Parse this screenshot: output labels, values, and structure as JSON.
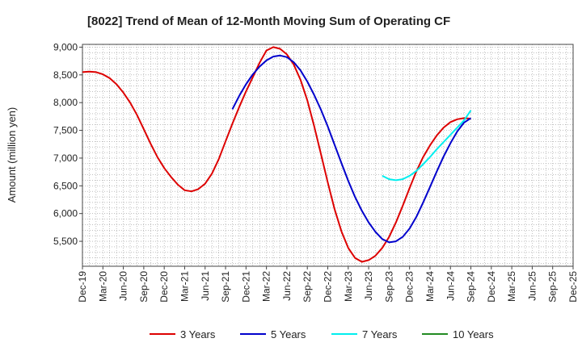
{
  "chart_data": {
    "type": "line",
    "title": "[8022]  Trend of Mean of 12-Month Moving Sum of Operating CF",
    "ylabel": "Amount (million yen)",
    "xlabel": "",
    "ylim": [
      5050,
      9050
    ],
    "y_ticks": [
      5500,
      6000,
      6500,
      7000,
      7500,
      8000,
      8500,
      9000
    ],
    "y_tick_labels": [
      "5,500",
      "6,000",
      "6,500",
      "7,000",
      "7,500",
      "8,000",
      "8,500",
      "9,000"
    ],
    "x_range_months": [
      0,
      72
    ],
    "x_ticks": [
      0,
      3,
      6,
      9,
      12,
      15,
      18,
      21,
      24,
      27,
      30,
      33,
      36,
      39,
      42,
      45,
      48,
      51,
      54,
      57,
      60,
      63,
      66,
      69,
      72
    ],
    "x_tick_labels": [
      "Dec-19",
      "Mar-20",
      "Jun-20",
      "Sep-20",
      "Dec-20",
      "Mar-21",
      "Jun-21",
      "Sep-21",
      "Dec-21",
      "Mar-22",
      "Jun-22",
      "Sep-22",
      "Dec-22",
      "Mar-23",
      "Jun-23",
      "Sep-23",
      "Dec-23",
      "Mar-24",
      "Jun-24",
      "Sep-24",
      "Dec-24",
      "Mar-25",
      "Jun-25",
      "Sep-25",
      "Dec-25"
    ],
    "grid": true,
    "legend_position": "bottom",
    "series": [
      {
        "name": "3 Years",
        "color": "#dd0000",
        "x": [
          0,
          1,
          2,
          3,
          4,
          5,
          6,
          7,
          8,
          9,
          10,
          11,
          12,
          13,
          14,
          15,
          16,
          17,
          18,
          19,
          20,
          21,
          22,
          23,
          24,
          25,
          26,
          27,
          28,
          29,
          30,
          31,
          32,
          33,
          34,
          35,
          36,
          37,
          38,
          39,
          40,
          41,
          42,
          43,
          44,
          45,
          46,
          47,
          48,
          49,
          50,
          51,
          52,
          53,
          54,
          55,
          56,
          57
        ],
        "values": [
          8550,
          8560,
          8550,
          8510,
          8440,
          8330,
          8180,
          8000,
          7780,
          7520,
          7260,
          7020,
          6820,
          6660,
          6520,
          6420,
          6400,
          6440,
          6540,
          6720,
          6980,
          7300,
          7620,
          7920,
          8200,
          8460,
          8720,
          8940,
          9000,
          8970,
          8870,
          8690,
          8410,
          8040,
          7580,
          7070,
          6560,
          6080,
          5680,
          5380,
          5200,
          5130,
          5160,
          5240,
          5380,
          5580,
          5840,
          6140,
          6460,
          6760,
          7020,
          7230,
          7410,
          7550,
          7650,
          7700,
          7720,
          7710
        ],
        "plot_until": 57
      },
      {
        "name": "5 Years",
        "color": "#0000cc",
        "x": [
          22,
          23,
          24,
          25,
          26,
          27,
          28,
          29,
          30,
          31,
          32,
          33,
          34,
          35,
          36,
          37,
          38,
          39,
          40,
          41,
          42,
          43,
          44,
          45,
          46,
          47,
          48,
          49,
          50,
          51,
          52,
          53,
          54,
          55,
          56,
          57
        ],
        "values": [
          7880,
          8120,
          8330,
          8510,
          8650,
          8760,
          8830,
          8850,
          8820,
          8730,
          8580,
          8380,
          8140,
          7870,
          7570,
          7240,
          6910,
          6590,
          6300,
          6050,
          5840,
          5670,
          5540,
          5480,
          5500,
          5580,
          5730,
          5940,
          6200,
          6480,
          6760,
          7030,
          7270,
          7480,
          7640,
          7720
        ]
      },
      {
        "name": "7 Years",
        "color": "#00eeee",
        "x": [
          44,
          45,
          46,
          47,
          48,
          49,
          50,
          51,
          52,
          53,
          54,
          55,
          56,
          57
        ],
        "values": [
          6680,
          6620,
          6600,
          6620,
          6680,
          6770,
          6890,
          7020,
          7160,
          7290,
          7420,
          7550,
          7680,
          7860
        ]
      },
      {
        "name": "10 Years",
        "color": "#228b22",
        "x": [],
        "values": []
      }
    ]
  }
}
